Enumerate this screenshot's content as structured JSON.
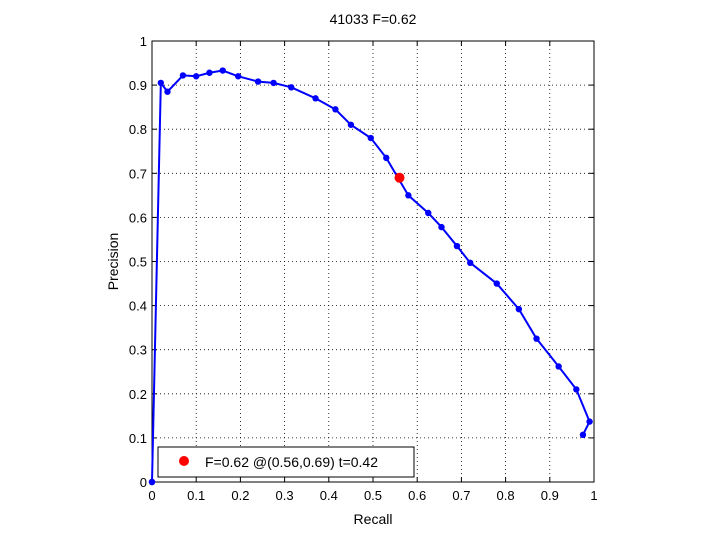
{
  "chart_data": {
    "type": "line",
    "title": "41033 F=0.62",
    "xlabel": "Recall",
    "ylabel": "Precision",
    "xlim": [
      0,
      1
    ],
    "ylim": [
      0,
      1
    ],
    "grid": true,
    "legend_position": "bottom-left",
    "x_ticks": [
      "0",
      "0.1",
      "0.2",
      "0.3",
      "0.4",
      "0.5",
      "0.6",
      "0.7",
      "0.8",
      "0.9",
      "1"
    ],
    "y_ticks": [
      "0",
      "0.1",
      "0.2",
      "0.3",
      "0.4",
      "0.5",
      "0.6",
      "0.7",
      "0.8",
      "0.9",
      "1"
    ],
    "colors": {
      "series": "#0000ff",
      "best_point": "#ff0000",
      "grid": "#000000"
    },
    "series": [
      {
        "x": [
          0.0,
          0.0,
          0.02,
          0.035,
          0.07,
          0.1,
          0.13,
          0.16,
          0.195,
          0.24,
          0.275,
          0.315,
          0.37,
          0.415,
          0.45,
          0.495,
          0.53,
          0.58,
          0.625,
          0.655,
          0.69,
          0.72,
          0.78,
          0.83,
          0.87,
          0.92,
          0.96,
          0.99,
          0.975
        ],
        "y": [
          0.0,
          0.0,
          0.905,
          0.885,
          0.922,
          0.92,
          0.928,
          0.933,
          0.92,
          0.908,
          0.905,
          0.895,
          0.87,
          0.845,
          0.81,
          0.78,
          0.735,
          0.65,
          0.61,
          0.578,
          0.535,
          0.497,
          0.45,
          0.392,
          0.325,
          0.262,
          0.21,
          0.137,
          0.107
        ]
      }
    ],
    "best_point": {
      "x": 0.56,
      "y": 0.69
    },
    "legend_text": "F=0.62 @(0.56,0.69) t=0.42"
  }
}
